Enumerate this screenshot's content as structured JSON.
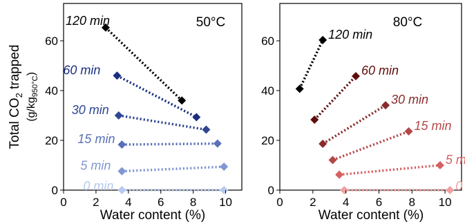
{
  "figure": {
    "ylabel_main": "Total CO",
    "ylabel_sub": "2",
    "ylabel_rest": " trapped",
    "ylabel_unit_open": "(g/kg",
    "ylabel_unit_sub": "950°C",
    "ylabel_unit_close": ")"
  },
  "chart_data": [
    {
      "type": "scatter",
      "title": "50°C",
      "xlabel": "Water content (%)",
      "ylabel": "Total CO2 trapped (g/kg950°C)",
      "xlim": [
        0,
        11
      ],
      "ylim": [
        0,
        75
      ],
      "xticks": [
        0,
        2,
        4,
        6,
        8,
        10
      ],
      "yticks": [
        0,
        20,
        40,
        60
      ],
      "grid": false,
      "series": [
        {
          "name": "120 min",
          "color": "#000000",
          "x": [
            2.6,
            7.3
          ],
          "y": [
            65.3,
            36.0
          ]
        },
        {
          "name": "60 min",
          "color": "#1a2e80",
          "x": [
            3.3,
            8.2
          ],
          "y": [
            46.0,
            29.3
          ]
        },
        {
          "name": "30 min",
          "color": "#2e4592",
          "x": [
            3.4,
            8.8
          ],
          "y": [
            30.0,
            24.3
          ]
        },
        {
          "name": "15 min",
          "color": "#5a6fb8",
          "x": [
            3.6,
            9.5
          ],
          "y": [
            18.3,
            18.7
          ]
        },
        {
          "name": "5 min",
          "color": "#8196d2",
          "x": [
            3.6,
            9.9
          ],
          "y": [
            7.6,
            9.4
          ]
        },
        {
          "name": "0 min",
          "color": "#b6c9ef",
          "x": [
            3.6,
            9.9
          ],
          "y": [
            0.0,
            0.0
          ]
        }
      ]
    },
    {
      "type": "scatter",
      "title": "80°C",
      "xlabel": "Water content (%)",
      "ylabel": "",
      "xlim": [
        0,
        11
      ],
      "ylim": [
        0,
        75
      ],
      "xticks": [
        0,
        2,
        4,
        6,
        8,
        10
      ],
      "yticks": [
        0,
        20,
        40,
        60
      ],
      "grid": false,
      "series": [
        {
          "name": "120 min",
          "color": "#000000",
          "x": [
            1.2,
            2.6
          ],
          "y": [
            40.7,
            60.3
          ]
        },
        {
          "name": "60 min",
          "color": "#5e0c0c",
          "x": [
            2.1,
            4.6
          ],
          "y": [
            28.3,
            45.8
          ]
        },
        {
          "name": "30 min",
          "color": "#8a2a2a",
          "x": [
            2.6,
            6.4
          ],
          "y": [
            18.6,
            34.1
          ]
        },
        {
          "name": "15 min",
          "color": "#b34848",
          "x": [
            3.2,
            7.8
          ],
          "y": [
            12.1,
            23.6
          ]
        },
        {
          "name": "5 min",
          "color": "#d66060",
          "x": [
            3.6,
            9.7
          ],
          "y": [
            6.2,
            10.0
          ]
        },
        {
          "name": "0 min",
          "color": "#f0a0a0",
          "x": [
            3.9,
            10.3
          ],
          "y": [
            0.0,
            0.0
          ]
        }
      ]
    }
  ]
}
